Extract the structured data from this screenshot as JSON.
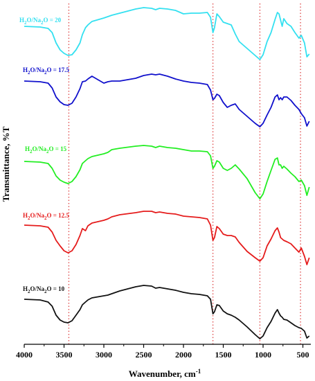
{
  "chart_data": {
    "type": "line",
    "title": "",
    "xlabel_main": "Wavenumber, cm",
    "xlabel_sup": "-1",
    "ylabel": "Transmittance, %T",
    "xlim": [
      4000,
      400
    ],
    "xticks": [
      4000,
      3500,
      3000,
      2500,
      2000,
      1500,
      1000,
      500
    ],
    "xtick_labels": [
      "4000",
      "3500",
      "3000",
      "2500",
      "2000",
      "1500",
      "1000",
      "500"
    ],
    "reference_lines": [
      3440,
      1630,
      1040,
      530
    ],
    "series": [
      {
        "name": "H2O/Na2O = 20",
        "label_main": "H",
        "label_sub1": "2",
        "label_mid": "O/Na",
        "label_sub2": "2",
        "label_end": "O = 20",
        "color": "#33e0f0",
        "points": [
          [
            4000,
            38
          ],
          [
            3800,
            39
          ],
          [
            3700,
            41
          ],
          [
            3650,
            47
          ],
          [
            3600,
            62
          ],
          [
            3550,
            72
          ],
          [
            3500,
            77
          ],
          [
            3450,
            80
          ],
          [
            3400,
            79
          ],
          [
            3350,
            72
          ],
          [
            3300,
            62
          ],
          [
            3270,
            50
          ],
          [
            3230,
            40
          ],
          [
            3200,
            36
          ],
          [
            3150,
            31
          ],
          [
            3000,
            26
          ],
          [
            2950,
            24
          ],
          [
            2900,
            22
          ],
          [
            2800,
            19
          ],
          [
            2600,
            13
          ],
          [
            2500,
            11
          ],
          [
            2400,
            12
          ],
          [
            2350,
            14
          ],
          [
            2300,
            12
          ],
          [
            2200,
            13
          ],
          [
            2100,
            15
          ],
          [
            2000,
            20
          ],
          [
            1900,
            19
          ],
          [
            1800,
            19
          ],
          [
            1700,
            18
          ],
          [
            1660,
            25
          ],
          [
            1630,
            47
          ],
          [
            1610,
            40
          ],
          [
            1580,
            20
          ],
          [
            1550,
            24
          ],
          [
            1500,
            32
          ],
          [
            1450,
            34
          ],
          [
            1400,
            36
          ],
          [
            1350,
            49
          ],
          [
            1300,
            60
          ],
          [
            1200,
            70
          ],
          [
            1100,
            80
          ],
          [
            1040,
            86
          ],
          [
            1000,
            79
          ],
          [
            950,
            60
          ],
          [
            900,
            47
          ],
          [
            850,
            28
          ],
          [
            820,
            18
          ],
          [
            800,
            20
          ],
          [
            780,
            29
          ],
          [
            760,
            38
          ],
          [
            740,
            27
          ],
          [
            700,
            34
          ],
          [
            650,
            38
          ],
          [
            600,
            47
          ],
          [
            550,
            55
          ],
          [
            520,
            51
          ],
          [
            480,
            62
          ],
          [
            450,
            82
          ],
          [
            420,
            78
          ]
        ]
      },
      {
        "name": "H2O/Na2O = 17.5",
        "label_main": "H",
        "label_sub1": "2",
        "label_mid": "O/Na",
        "label_sub2": "2",
        "label_end": "O = 17.5",
        "color": "#1010cc",
        "points": [
          [
            4000,
            117
          ],
          [
            3800,
            118
          ],
          [
            3700,
            120
          ],
          [
            3650,
            127
          ],
          [
            3600,
            140
          ],
          [
            3550,
            147
          ],
          [
            3500,
            151
          ],
          [
            3450,
            152
          ],
          [
            3400,
            149
          ],
          [
            3350,
            140
          ],
          [
            3300,
            128
          ],
          [
            3270,
            118
          ],
          [
            3230,
            117
          ],
          [
            3200,
            114
          ],
          [
            3150,
            110
          ],
          [
            3000,
            120
          ],
          [
            2950,
            118
          ],
          [
            2900,
            117
          ],
          [
            2800,
            117
          ],
          [
            2600,
            113
          ],
          [
            2500,
            109
          ],
          [
            2400,
            107
          ],
          [
            2350,
            108
          ],
          [
            2300,
            107
          ],
          [
            2200,
            110
          ],
          [
            2100,
            114
          ],
          [
            2000,
            117
          ],
          [
            1900,
            119
          ],
          [
            1800,
            120
          ],
          [
            1700,
            122
          ],
          [
            1660,
            130
          ],
          [
            1630,
            144
          ],
          [
            1610,
            142
          ],
          [
            1580,
            136
          ],
          [
            1550,
            138
          ],
          [
            1500,
            148
          ],
          [
            1450,
            155
          ],
          [
            1400,
            152
          ],
          [
            1350,
            150
          ],
          [
            1300,
            158
          ],
          [
            1200,
            168
          ],
          [
            1100,
            178
          ],
          [
            1040,
            183
          ],
          [
            1000,
            178
          ],
          [
            950,
            166
          ],
          [
            900,
            155
          ],
          [
            850,
            140
          ],
          [
            820,
            137
          ],
          [
            800,
            144
          ],
          [
            780,
            141
          ],
          [
            760,
            144
          ],
          [
            740,
            140
          ],
          [
            700,
            140
          ],
          [
            650,
            145
          ],
          [
            600,
            152
          ],
          [
            550,
            158
          ],
          [
            520,
            164
          ],
          [
            480,
            170
          ],
          [
            450,
            182
          ],
          [
            420,
            175
          ]
        ]
      },
      {
        "name": "H2O/Na2O = 15",
        "label_main": "H",
        "label_sub1": "2",
        "label_mid": "O/Na",
        "label_sub2": "2",
        "label_end": "O = 15",
        "color": "#22ee22",
        "points": [
          [
            4000,
            233
          ],
          [
            3800,
            234
          ],
          [
            3700,
            236
          ],
          [
            3650,
            243
          ],
          [
            3600,
            254
          ],
          [
            3550,
            260
          ],
          [
            3500,
            263
          ],
          [
            3450,
            265
          ],
          [
            3400,
            262
          ],
          [
            3350,
            255
          ],
          [
            3300,
            245
          ],
          [
            3270,
            236
          ],
          [
            3230,
            232
          ],
          [
            3200,
            229
          ],
          [
            3150,
            226
          ],
          [
            3000,
            222
          ],
          [
            2950,
            220
          ],
          [
            2900,
            216
          ],
          [
            2800,
            214
          ],
          [
            2600,
            211
          ],
          [
            2500,
            210
          ],
          [
            2400,
            211
          ],
          [
            2350,
            213
          ],
          [
            2300,
            211
          ],
          [
            2200,
            213
          ],
          [
            2100,
            214
          ],
          [
            2000,
            216
          ],
          [
            1900,
            218
          ],
          [
            1800,
            218
          ],
          [
            1700,
            219
          ],
          [
            1660,
            225
          ],
          [
            1630,
            243
          ],
          [
            1610,
            240
          ],
          [
            1580,
            232
          ],
          [
            1550,
            234
          ],
          [
            1500,
            243
          ],
          [
            1450,
            246
          ],
          [
            1400,
            243
          ],
          [
            1350,
            238
          ],
          [
            1300,
            244
          ],
          [
            1200,
            258
          ],
          [
            1100,
            278
          ],
          [
            1040,
            287
          ],
          [
            1000,
            280
          ],
          [
            950,
            262
          ],
          [
            900,
            246
          ],
          [
            850,
            230
          ],
          [
            820,
            228
          ],
          [
            800,
            238
          ],
          [
            780,
            238
          ],
          [
            760,
            243
          ],
          [
            740,
            240
          ],
          [
            700,
            244
          ],
          [
            650,
            250
          ],
          [
            600,
            255
          ],
          [
            550,
            262
          ],
          [
            520,
            260
          ],
          [
            480,
            268
          ],
          [
            450,
            282
          ],
          [
            420,
            270
          ]
        ]
      },
      {
        "name": "H2O/Na2O = 12.5",
        "label_main": "H",
        "label_sub1": "2",
        "label_mid": "O/Na",
        "label_sub2": "2",
        "label_end": "O = 12.5",
        "color": "#e51b1b",
        "points": [
          [
            4000,
            325
          ],
          [
            3800,
            326
          ],
          [
            3700,
            328
          ],
          [
            3650,
            335
          ],
          [
            3600,
            347
          ],
          [
            3550,
            355
          ],
          [
            3500,
            362
          ],
          [
            3450,
            365
          ],
          [
            3400,
            362
          ],
          [
            3350,
            353
          ],
          [
            3300,
            340
          ],
          [
            3270,
            330
          ],
          [
            3230,
            333
          ],
          [
            3200,
            326
          ],
          [
            3150,
            322
          ],
          [
            3000,
            318
          ],
          [
            2950,
            316
          ],
          [
            2900,
            313
          ],
          [
            2800,
            310
          ],
          [
            2600,
            307
          ],
          [
            2500,
            305
          ],
          [
            2400,
            305
          ],
          [
            2350,
            307
          ],
          [
            2300,
            306
          ],
          [
            2200,
            308
          ],
          [
            2100,
            309
          ],
          [
            2000,
            312
          ],
          [
            1900,
            313
          ],
          [
            1800,
            314
          ],
          [
            1700,
            316
          ],
          [
            1660,
            325
          ],
          [
            1630,
            347
          ],
          [
            1610,
            343
          ],
          [
            1580,
            327
          ],
          [
            1550,
            330
          ],
          [
            1500,
            338
          ],
          [
            1450,
            340
          ],
          [
            1400,
            340
          ],
          [
            1350,
            342
          ],
          [
            1300,
            350
          ],
          [
            1200,
            363
          ],
          [
            1100,
            372
          ],
          [
            1040,
            377
          ],
          [
            1000,
            372
          ],
          [
            950,
            355
          ],
          [
            900,
            345
          ],
          [
            850,
            333
          ],
          [
            820,
            329
          ],
          [
            800,
            335
          ],
          [
            780,
            343
          ],
          [
            760,
            345
          ],
          [
            740,
            347
          ],
          [
            700,
            349
          ],
          [
            650,
            352
          ],
          [
            600,
            358
          ],
          [
            550,
            364
          ],
          [
            520,
            358
          ],
          [
            480,
            370
          ],
          [
            450,
            382
          ],
          [
            420,
            372
          ]
        ]
      },
      {
        "name": "H2O/Na2O = 10",
        "label_main": "H",
        "label_sub1": "2",
        "label_mid": "O/Na",
        "label_sub2": "2",
        "label_end": "O = 10",
        "color": "#111111",
        "points": [
          [
            4000,
            432
          ],
          [
            3800,
            433
          ],
          [
            3700,
            436
          ],
          [
            3650,
            442
          ],
          [
            3600,
            455
          ],
          [
            3550,
            462
          ],
          [
            3500,
            465
          ],
          [
            3450,
            466
          ],
          [
            3400,
            463
          ],
          [
            3350,
            455
          ],
          [
            3300,
            447
          ],
          [
            3270,
            440
          ],
          [
            3230,
            436
          ],
          [
            3200,
            433
          ],
          [
            3150,
            430
          ],
          [
            3000,
            427
          ],
          [
            2950,
            426
          ],
          [
            2900,
            424
          ],
          [
            2800,
            420
          ],
          [
            2600,
            414
          ],
          [
            2500,
            412
          ],
          [
            2400,
            413
          ],
          [
            2350,
            416
          ],
          [
            2300,
            415
          ],
          [
            2200,
            417
          ],
          [
            2100,
            419
          ],
          [
            2000,
            422
          ],
          [
            1900,
            424
          ],
          [
            1800,
            425
          ],
          [
            1700,
            427
          ],
          [
            1660,
            432
          ],
          [
            1630,
            453
          ],
          [
            1610,
            450
          ],
          [
            1580,
            440
          ],
          [
            1550,
            441
          ],
          [
            1500,
            449
          ],
          [
            1450,
            453
          ],
          [
            1400,
            455
          ],
          [
            1350,
            458
          ],
          [
            1300,
            462
          ],
          [
            1200,
            472
          ],
          [
            1100,
            483
          ],
          [
            1040,
            489
          ],
          [
            1000,
            485
          ],
          [
            950,
            473
          ],
          [
            900,
            464
          ],
          [
            850,
            452
          ],
          [
            820,
            447
          ],
          [
            800,
            452
          ],
          [
            780,
            456
          ],
          [
            760,
            458
          ],
          [
            740,
            461
          ],
          [
            700,
            462
          ],
          [
            650,
            466
          ],
          [
            600,
            470
          ],
          [
            550,
            473
          ],
          [
            520,
            474
          ],
          [
            480,
            478
          ],
          [
            450,
            488
          ],
          [
            420,
            485
          ]
        ]
      }
    ]
  }
}
